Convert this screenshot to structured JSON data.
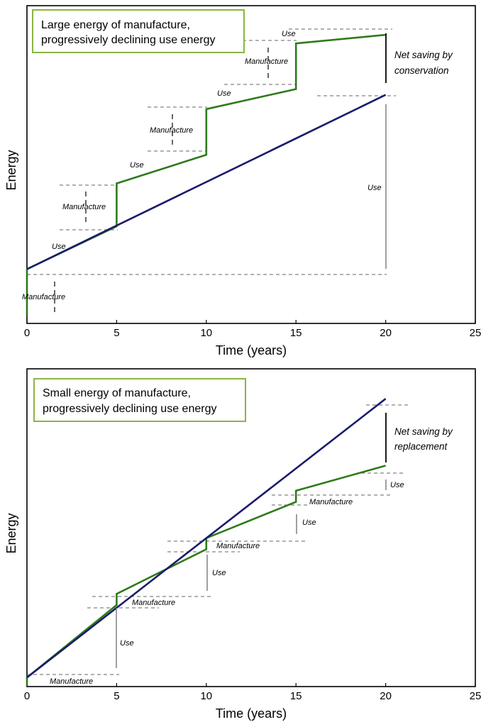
{
  "chart_data": [
    {
      "type": "line",
      "title": "Large energy of manufacture, progressively declining use energy",
      "title_lines": [
        "Large energy of manufacture,",
        "progressively declining use energy"
      ],
      "xlabel": "Time (years)",
      "ylabel": "Energy",
      "xlim": [
        0,
        25
      ],
      "ylim": [
        0,
        100
      ],
      "x_ticks": [
        "0",
        "5",
        "10",
        "15",
        "20",
        "25"
      ],
      "y_ticks_shown": false,
      "grid": false,
      "series": [
        {
          "name": "",
          "color": "#2f7a1c",
          "x": [
            0,
            0,
            5,
            5,
            10,
            10,
            15,
            15,
            20
          ],
          "y": [
            0,
            16,
            31,
            46,
            56,
            72,
            79,
            95,
            98
          ]
        },
        {
          "name": "",
          "color": "#1a1c6b",
          "x": [
            0,
            20
          ],
          "y": [
            16,
            77
          ]
        }
      ],
      "annotations": [
        {
          "text": "Manufacture",
          "x": 0,
          "y_from": 0,
          "y_to": 16
        },
        {
          "text": "Use",
          "x": 2.5
        },
        {
          "text": "Manufacture",
          "x": 5,
          "y_from": 31,
          "y_to": 46
        },
        {
          "text": "Use",
          "x": 7.5
        },
        {
          "text": "Manufacture",
          "x": 10,
          "y_from": 56,
          "y_to": 72
        },
        {
          "text": "Use",
          "x": 12.5
        },
        {
          "text": "Manufacture",
          "x": 15,
          "y_from": 79,
          "y_to": 95
        },
        {
          "text": "Use",
          "x": 17.5
        },
        {
          "text": "Use",
          "x": 20,
          "y_from": 16,
          "y_to": 77
        },
        {
          "text_lines": [
            "Net saving by",
            "conservation"
          ],
          "x": 20,
          "y_from": 77,
          "y_to": 98
        }
      ]
    },
    {
      "type": "line",
      "title": "Small energy of manufacture, progressively declining use energy",
      "title_lines": [
        "Small energy of manufacture,",
        "progressively declining use energy"
      ],
      "xlabel": "Time (years)",
      "ylabel": "Energy",
      "xlim": [
        0,
        25
      ],
      "ylim": [
        0,
        100
      ],
      "x_ticks": [
        "0",
        "5",
        "10",
        "15",
        "20",
        "25"
      ],
      "y_ticks_shown": false,
      "grid": false,
      "series": [
        {
          "name": "",
          "color": "#2f7a1c",
          "x": [
            0,
            0,
            5,
            5,
            10,
            10,
            15,
            15,
            20
          ],
          "y": [
            0,
            3,
            29,
            33,
            49,
            53,
            66,
            70,
            79
          ]
        },
        {
          "name": "",
          "color": "#1a1c6b",
          "x": [
            0,
            20
          ],
          "y": [
            3,
            103
          ]
        }
      ],
      "annotations": [
        {
          "text": "Manufacture",
          "x": 0,
          "y_from": 0,
          "y_to": 3
        },
        {
          "text": "Use",
          "x": 5,
          "y_from": 3,
          "y_to": 29
        },
        {
          "text": "Manufacture",
          "x": 5,
          "y_from": 29,
          "y_to": 33
        },
        {
          "text": "Use",
          "x": 10,
          "y_from": 33,
          "y_to": 49
        },
        {
          "text": "Manufacture",
          "x": 10,
          "y_from": 49,
          "y_to": 53
        },
        {
          "text": "Use",
          "x": 15,
          "y_from": 53,
          "y_to": 66
        },
        {
          "text": "Manufacture",
          "x": 15,
          "y_from": 66,
          "y_to": 70
        },
        {
          "text": "Use",
          "x": 20,
          "y_from": 70,
          "y_to": 79
        },
        {
          "text_lines": [
            "Net saving by",
            "replacement"
          ],
          "x": 20,
          "y_from": 79,
          "y_to": 103
        }
      ]
    }
  ]
}
